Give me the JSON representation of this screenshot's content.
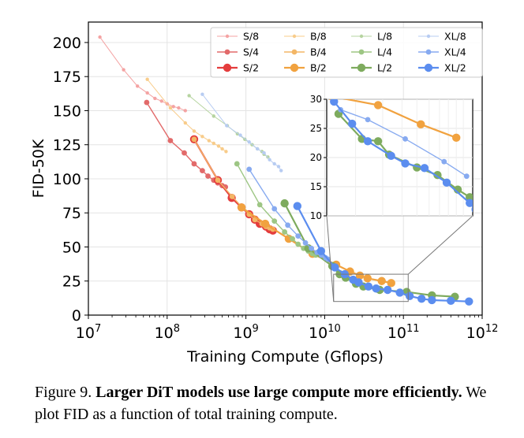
{
  "chart_data": {
    "type": "line",
    "xscale": "log",
    "xlabel": "Training Compute (Gflops)",
    "ylabel": "FID-50K",
    "xlim": [
      10000000.0,
      1000000000000.0
    ],
    "ylim": [
      0,
      215
    ],
    "xticks": [
      {
        "value": 10000000.0,
        "base": "10",
        "exp": "7"
      },
      {
        "value": 100000000.0,
        "base": "10",
        "exp": "8"
      },
      {
        "value": 1000000000.0,
        "base": "10",
        "exp": "9"
      },
      {
        "value": 10000000000.0,
        "base": "10",
        "exp": "10"
      },
      {
        "value": 100000000000.0,
        "base": "10",
        "exp": "11"
      },
      {
        "value": 1000000000000.0,
        "base": "10",
        "exp": "12"
      }
    ],
    "yticks": [
      0,
      25,
      50,
      75,
      100,
      125,
      150,
      175,
      200
    ],
    "grid": true,
    "legend": "top-right",
    "series": [
      {
        "name": "S/8",
        "color": "#f4a3a3",
        "size": "small",
        "points": [
          [
            14000000.0,
            204
          ],
          [
            28000000.0,
            180
          ],
          [
            42000000.0,
            168
          ],
          [
            56000000.0,
            163
          ],
          [
            70000000.0,
            159
          ],
          [
            85000000.0,
            157
          ],
          [
            100000000.0,
            155
          ],
          [
            120000000.0,
            153
          ],
          [
            140000000.0,
            152
          ],
          [
            170000000.0,
            150
          ]
        ]
      },
      {
        "name": "S/4",
        "color": "#e26a6a",
        "size": "medium",
        "points": [
          [
            55000000.0,
            156
          ],
          [
            110000000.0,
            128
          ],
          [
            165000000.0,
            119
          ],
          [
            220000000.0,
            111
          ],
          [
            280000000.0,
            106
          ],
          [
            330000000.0,
            102
          ],
          [
            390000000.0,
            99
          ],
          [
            440000000.0,
            97
          ],
          [
            500000000.0,
            95
          ],
          [
            550000000.0,
            94
          ]
        ]
      },
      {
        "name": "S/2",
        "color": "#e43d3d",
        "size": "large",
        "points": [
          [
            220000000.0,
            129
          ],
          [
            440000000.0,
            99
          ],
          [
            660000000.0,
            86
          ],
          [
            880000000.0,
            79
          ],
          [
            1100000000.0,
            74
          ],
          [
            1300000000.0,
            70
          ],
          [
            1500000000.0,
            67
          ],
          [
            1800000000.0,
            65
          ],
          [
            2000000000.0,
            63
          ],
          [
            2200000000.0,
            62
          ]
        ]
      },
      {
        "name": "B/8",
        "color": "#f8cc8a",
        "size": "small",
        "points": [
          [
            56000000.0,
            173
          ],
          [
            110000000.0,
            152
          ],
          [
            170000000.0,
            141
          ],
          [
            220000000.0,
            135
          ],
          [
            280000000.0,
            131
          ],
          [
            340000000.0,
            128
          ],
          [
            390000000.0,
            126
          ],
          [
            450000000.0,
            124
          ],
          [
            500000000.0,
            122
          ],
          [
            560000000.0,
            120
          ]
        ]
      },
      {
        "name": "B/4",
        "color": "#f3b666",
        "size": "medium",
        "points": [
          [
            220000000.0,
            129
          ],
          [
            440000000.0,
            99
          ],
          [
            670000000.0,
            87
          ],
          [
            900000000.0,
            79
          ],
          [
            1100000000.0,
            74
          ],
          [
            1300000000.0,
            70
          ],
          [
            1600000000.0,
            67
          ],
          [
            1800000000.0,
            65
          ],
          [
            2000000000.0,
            64
          ],
          [
            2200000000.0,
            63
          ]
        ]
      },
      {
        "name": "B/2",
        "color": "#f1a23f",
        "size": "large",
        "points": [
          [
            880000000.0,
            79
          ],
          [
            1760000000.0,
            67
          ],
          [
            3500000000.0,
            56
          ],
          [
            7000000000.0,
            45
          ],
          [
            14000000000.0,
            37
          ],
          [
            21000000000.0,
            32
          ],
          [
            28000000000.0,
            29
          ],
          [
            35000000000.0,
            27
          ],
          [
            53000000000.0,
            25
          ],
          [
            70000000000.0,
            23.5
          ]
        ]
      },
      {
        "name": "L/8",
        "color": "#b6d4a0",
        "size": "small",
        "points": [
          [
            190000000.0,
            161
          ],
          [
            390000000.0,
            146
          ],
          [
            580000000.0,
            139
          ],
          [
            780000000.0,
            133
          ],
          [
            970000000.0,
            129
          ],
          [
            1200000000.0,
            125
          ],
          [
            1400000000.0,
            122
          ],
          [
            1600000000.0,
            120
          ],
          [
            1700000000.0,
            118
          ],
          [
            1900000000.0,
            116
          ]
        ]
      },
      {
        "name": "L/4",
        "color": "#9dc684",
        "size": "medium",
        "points": [
          [
            770000000.0,
            111
          ],
          [
            1500000000.0,
            81
          ],
          [
            2300000000.0,
            69
          ],
          [
            3100000000.0,
            61
          ],
          [
            3900000000.0,
            56
          ],
          [
            4600000000.0,
            52
          ],
          [
            5400000000.0,
            49
          ],
          [
            6200000000.0,
            47
          ],
          [
            7000000000.0,
            45
          ],
          [
            7700000000.0,
            44
          ]
        ]
      },
      {
        "name": "L/2",
        "color": "#7eab5e",
        "size": "large",
        "points": [
          [
            3100000000.0,
            82
          ],
          [
            6200000000.0,
            49
          ],
          [
            12500000000.0,
            36
          ],
          [
            15500000000.0,
            30
          ],
          [
            18500000000.0,
            27.5
          ],
          [
            25000000000.0,
            23
          ],
          [
            31000000000.0,
            21
          ],
          [
            50000000000.0,
            18.5
          ],
          [
            110000000000.0,
            17
          ],
          [
            230000000000.0,
            14.5
          ],
          [
            450000000000.0,
            13.5
          ]
        ]
      },
      {
        "name": "XL/8",
        "color": "#b7ccf2",
        "size": "small",
        "points": [
          [
            280000000.0,
            162
          ],
          [
            570000000.0,
            139
          ],
          [
            850000000.0,
            132
          ],
          [
            1100000000.0,
            127
          ],
          [
            1400000000.0,
            122
          ],
          [
            1700000000.0,
            119
          ],
          [
            2000000000.0,
            114
          ],
          [
            2300000000.0,
            111
          ],
          [
            2600000000.0,
            109
          ],
          [
            2800000000.0,
            106
          ]
        ]
      },
      {
        "name": "XL/4",
        "color": "#87aaf0",
        "size": "medium",
        "points": [
          [
            1100000000.0,
            107
          ],
          [
            2300000000.0,
            78
          ],
          [
            3400000000.0,
            66
          ],
          [
            4600000000.0,
            58
          ],
          [
            5700000000.0,
            53
          ],
          [
            6800000000.0,
            49
          ],
          [
            8000000000.0,
            46
          ],
          [
            9100000000.0,
            44
          ],
          [
            10300000000.0,
            42
          ],
          [
            11000000000.0,
            41
          ]
        ]
      },
      {
        "name": "XL/2",
        "color": "#5b8def",
        "size": "large",
        "points": [
          [
            4500000000.0,
            80
          ],
          [
            9000000000.0,
            47
          ],
          [
            13500000000.0,
            35
          ],
          [
            18000000000.0,
            30
          ],
          [
            23000000000.0,
            26
          ],
          [
            27000000000.0,
            24
          ],
          [
            36000000000.0,
            21
          ],
          [
            45000000000.0,
            19.5
          ],
          [
            63000000000.0,
            18.5
          ],
          [
            90000000000.0,
            16.5
          ],
          [
            120000000000.0,
            14
          ],
          [
            170000000000.0,
            12
          ],
          [
            230000000000.0,
            11
          ],
          [
            400000000000.0,
            10.5
          ],
          [
            680000000000.0,
            10
          ]
        ]
      }
    ],
    "inset": {
      "xlim": [
        13000000000.0,
        115000000000.0
      ],
      "ylim": [
        10,
        30
      ],
      "yticks": [
        10,
        15,
        20,
        25,
        30
      ],
      "series": {
        "B/2": [
          [
            14000000000.0,
            30.5
          ],
          [
            28000000000.0,
            29
          ],
          [
            53000000000.0,
            25.7
          ],
          [
            90000000000.0,
            23.4
          ]
        ],
        "L/2": [
          [
            15500000000.0,
            27.5
          ],
          [
            22000000000.0,
            23.2
          ],
          [
            28000000000.0,
            22.8
          ],
          [
            33000000000.0,
            20.5
          ],
          [
            50000000000.0,
            18.3
          ],
          [
            68000000000.0,
            17
          ],
          [
            92000000000.0,
            14.5
          ],
          [
            110000000000.0,
            13.2
          ]
        ],
        "XL/4": [
          [
            16000000000.0,
            28.2
          ],
          [
            24000000000.0,
            26.5
          ],
          [
            42000000000.0,
            23.2
          ],
          [
            75000000000.0,
            19.3
          ],
          [
            105000000000.0,
            16.8
          ]
        ],
        "XL/2": [
          [
            14500000000.0,
            29.6
          ],
          [
            19000000000.0,
            25.8
          ],
          [
            24000000000.0,
            22.8
          ],
          [
            34000000000.0,
            20.3
          ],
          [
            42000000000.0,
            19
          ],
          [
            56000000000.0,
            18.2
          ],
          [
            78000000000.0,
            15.7
          ],
          [
            110000000000.0,
            12.2
          ],
          [
            120000000000.0,
            11.1
          ]
        ]
      }
    }
  },
  "caption": {
    "figure_label": "Figure 9.",
    "bold_text": "Larger DiT models use large compute more efficiently.",
    "text": "We plot FID as a function of total training compute."
  }
}
